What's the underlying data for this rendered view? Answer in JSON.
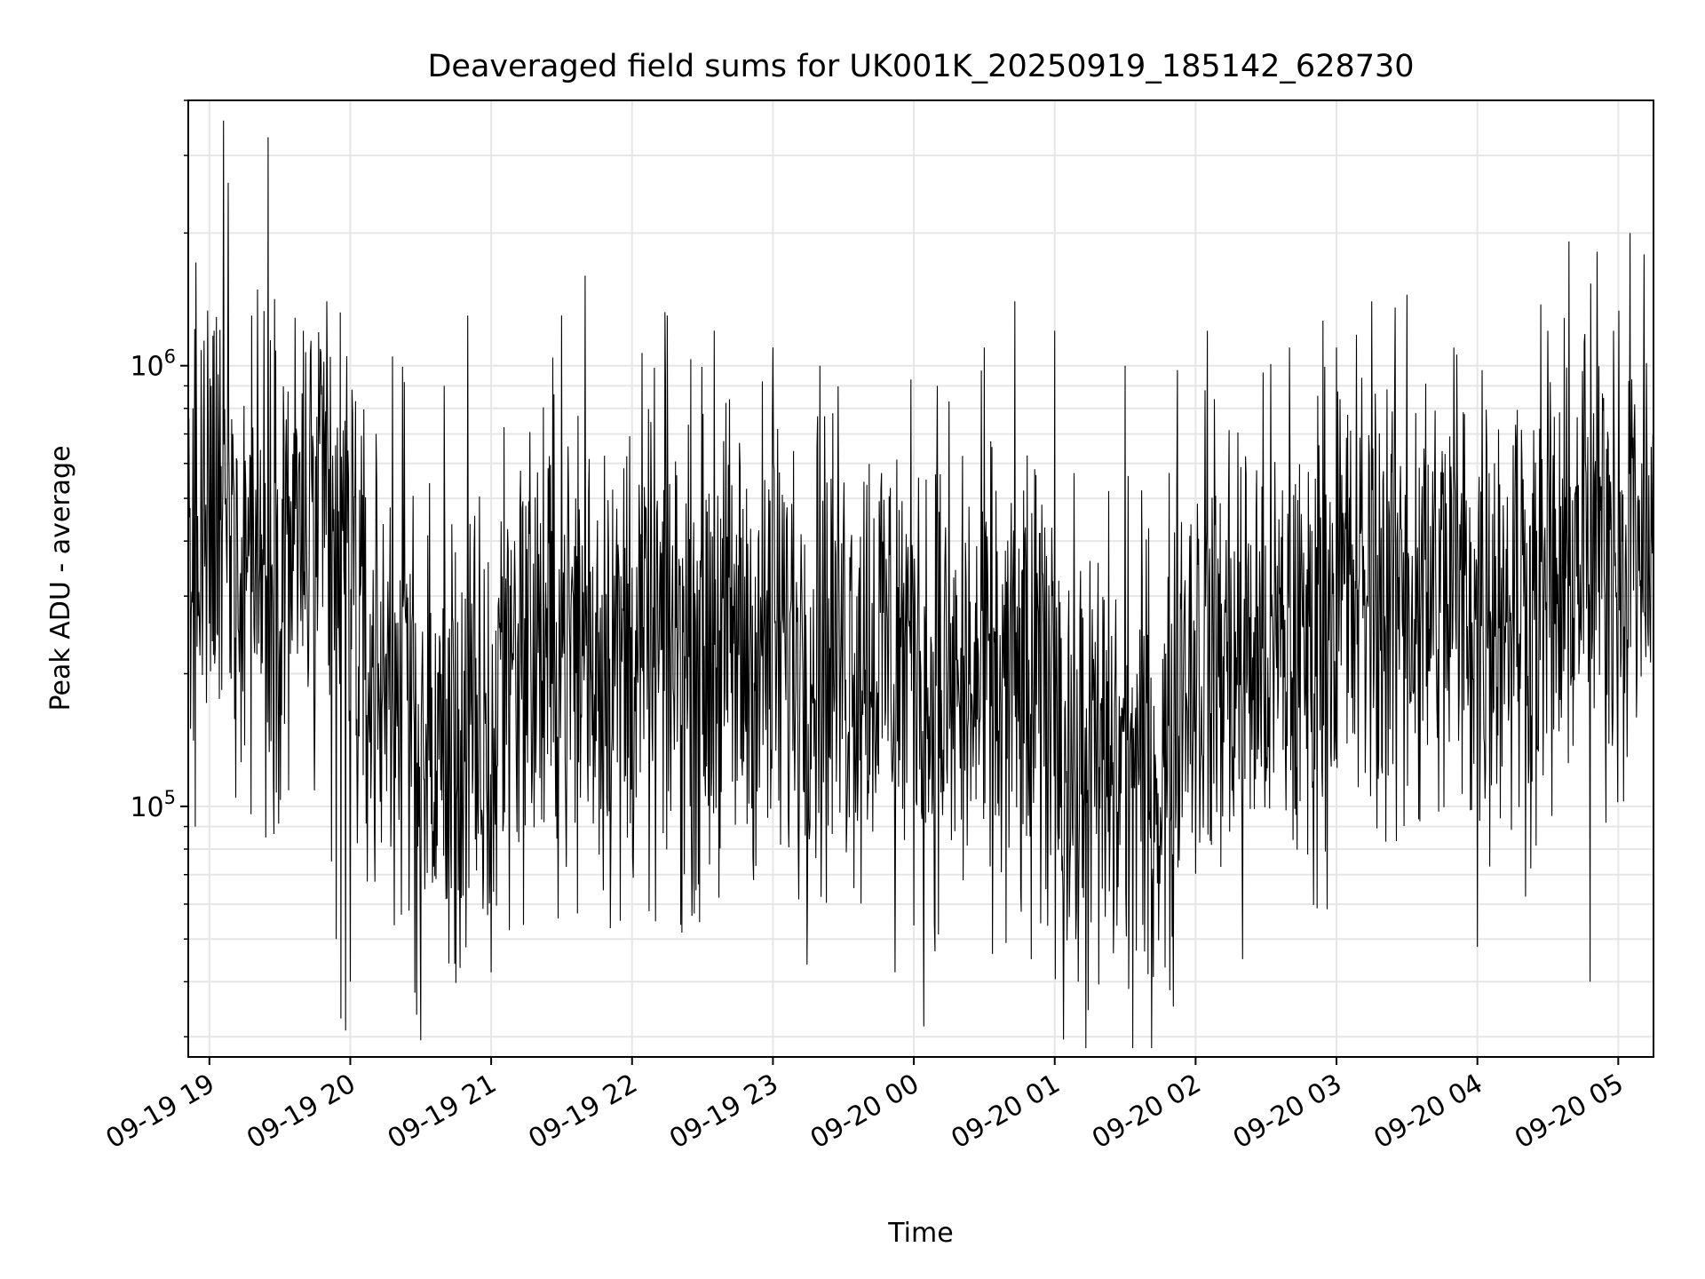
{
  "chart_data": {
    "type": "line",
    "title": "Deaveraged field sums for UK001K_20250919_185142_628730",
    "xlabel": "Time",
    "ylabel": "Peak ADU - average",
    "yscale": "log",
    "ylim": [
      27000,
      4000000
    ],
    "xlim": [
      "2025-09-19 18:51",
      "2025-09-20 05:15"
    ],
    "grid": "major and minor, light gray",
    "line_color": "#000000",
    "x_ticks": [
      "2025-09-19 19:00",
      "2025-09-19 20:00",
      "2025-09-19 21:00",
      "2025-09-19 22:00",
      "2025-09-19 23:00",
      "2025-09-20 00:00",
      "2025-09-20 01:00",
      "2025-09-20 02:00",
      "2025-09-20 03:00",
      "2025-09-20 04:00",
      "2025-09-20 05:00"
    ],
    "x_tick_labels": [
      "09-19 19",
      "09-19 20",
      "09-19 21",
      "09-19 22",
      "09-19 23",
      "09-20 00",
      "09-20 01",
      "09-20 02",
      "09-20 03",
      "09-20 04",
      "09-20 05"
    ],
    "y_ticks": [
      {
        "value": 100000,
        "base": "10",
        "exp": "5"
      },
      {
        "value": 1000000,
        "base": "10",
        "exp": "6"
      }
    ],
    "series": [
      {
        "sample_interval_minutes": 0.25,
        "points": [
          [
            "2025-09-19 18:51",
            300000
          ],
          [
            "2025-09-19 18:52",
            150000
          ],
          [
            "2025-09-19 18:53",
            800000
          ],
          [
            "2025-09-19 18:54",
            90000
          ],
          [
            "2025-09-19 18:56",
            220000
          ],
          [
            "2025-09-19 18:58",
            350000
          ],
          [
            "2025-09-19 19:00",
            260000
          ],
          [
            "2025-09-19 19:02",
            1200000
          ],
          [
            "2025-09-19 19:04",
            600000
          ],
          [
            "2025-09-19 19:06",
            3600000
          ],
          [
            "2025-09-19 19:07",
            500000
          ],
          [
            "2025-09-19 19:08",
            2600000
          ],
          [
            "2025-09-19 19:10",
            700000
          ],
          [
            "2025-09-19 19:12",
            400000
          ],
          [
            "2025-09-19 19:14",
            250000
          ],
          [
            "2025-09-19 19:18",
            1300000
          ],
          [
            "2025-09-19 19:22",
            200000
          ],
          [
            "2025-09-19 19:24",
            85000
          ],
          [
            "2025-09-19 19:25",
            3300000
          ],
          [
            "2025-09-19 19:30",
            250000
          ],
          [
            "2025-09-19 19:40",
            1200000
          ],
          [
            "2025-09-19 19:45",
            180000
          ],
          [
            "2025-09-19 19:50",
            1400000
          ],
          [
            "2025-09-19 19:52",
            75000
          ],
          [
            "2025-09-19 19:54",
            50000
          ],
          [
            "2025-09-19 19:56",
            33000
          ],
          [
            "2025-09-19 19:58",
            31000
          ],
          [
            "2025-09-19 20:00",
            40000
          ],
          [
            "2025-09-19 20:05",
            350000
          ],
          [
            "2025-09-19 20:18",
            1050000
          ],
          [
            "2025-09-19 20:25",
            58000
          ],
          [
            "2025-09-19 20:40",
            900000
          ],
          [
            "2025-09-19 20:50",
            1300000
          ],
          [
            "2025-09-19 21:00",
            42000
          ],
          [
            "2025-09-19 21:10",
            400000
          ],
          [
            "2025-09-19 21:30",
            1300000
          ],
          [
            "2025-09-19 21:40",
            1600000
          ],
          [
            "2025-09-19 21:55",
            55000
          ],
          [
            "2025-09-19 22:15",
            1300000
          ],
          [
            "2025-09-19 22:35",
            1200000
          ],
          [
            "2025-09-19 23:00",
            1100000
          ],
          [
            "2025-09-19 23:20",
            1000000
          ],
          [
            "2025-09-19 23:52",
            42000
          ],
          [
            "2025-09-20 00:10",
            900000
          ],
          [
            "2025-09-20 00:30",
            1100000
          ],
          [
            "2025-09-20 00:43",
            1400000
          ],
          [
            "2025-09-20 00:50",
            45000
          ],
          [
            "2025-09-20 01:00",
            1200000
          ],
          [
            "2025-09-20 01:10",
            40000
          ],
          [
            "2025-09-20 01:30",
            1000000
          ],
          [
            "2025-09-20 01:42",
            41000
          ],
          [
            "2025-09-20 02:05",
            1200000
          ],
          [
            "2025-09-20 02:20",
            45000
          ],
          [
            "2025-09-20 02:40",
            1100000
          ],
          [
            "2025-09-20 03:00",
            1100000
          ],
          [
            "2025-09-20 03:15",
            1400000
          ],
          [
            "2025-09-20 03:30",
            1450000
          ],
          [
            "2025-09-20 03:50",
            1100000
          ],
          [
            "2025-09-20 04:00",
            48000
          ],
          [
            "2025-09-20 04:30",
            1200000
          ],
          [
            "2025-09-20 04:48",
            40000
          ],
          [
            "2025-09-20 04:58",
            1200000
          ],
          [
            "2025-09-20 05:05",
            2000000
          ],
          [
            "2025-09-20 05:10",
            600000
          ],
          [
            "2025-09-20 05:15",
            300000
          ]
        ]
      }
    ]
  }
}
